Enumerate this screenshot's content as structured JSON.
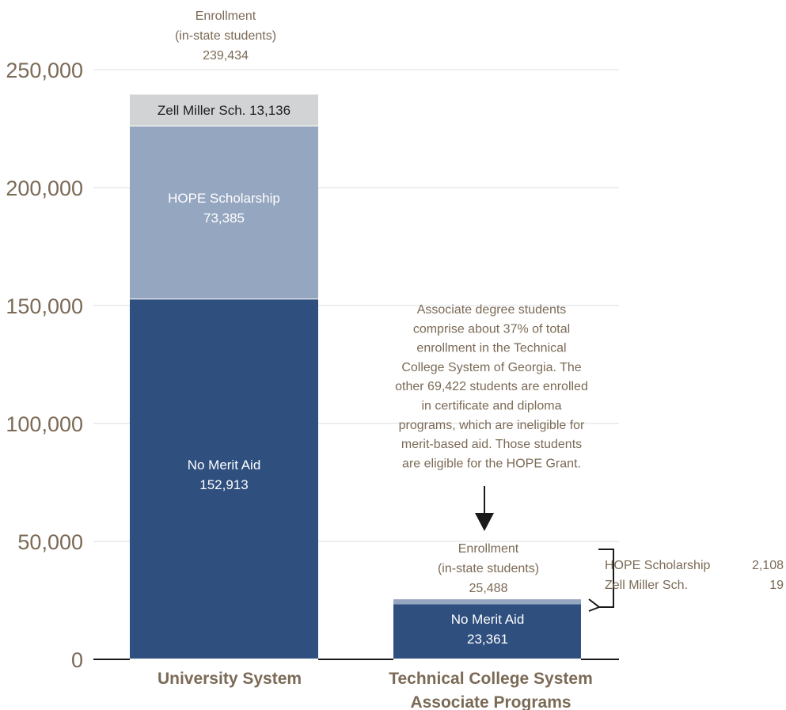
{
  "chart_data": {
    "type": "bar",
    "stacked": true,
    "ylim": [
      0,
      250000
    ],
    "yticks": [
      0,
      50000,
      100000,
      150000,
      200000,
      250000
    ],
    "ytick_labels": [
      "0",
      "50,000",
      "100,000",
      "150,000",
      "200,000",
      "250,000"
    ],
    "grid": true,
    "categories": [
      "University System",
      "Technical College System Associate Programs"
    ],
    "category_lines": [
      [
        "University System"
      ],
      [
        "Technical College System",
        "Associate Programs"
      ]
    ],
    "series": [
      {
        "name": "No Merit Aid",
        "values": [
          152913,
          23361
        ],
        "color": "#2f4f7f"
      },
      {
        "name": "HOPE Scholarship",
        "values": [
          73385,
          2108
        ],
        "color": "#95a6c0"
      },
      {
        "name": "Zell Miller Sch.",
        "values": [
          13136,
          19
        ],
        "color": "#d2d3d5"
      }
    ],
    "segment_labels": {
      "university": {
        "no_merit": [
          "No Merit Aid",
          "152,913"
        ],
        "hope": [
          "HOPE Scholarship",
          "73,385"
        ],
        "zell": "Zell Miller Sch.  13,136"
      },
      "technical": {
        "no_merit": [
          "No Merit Aid",
          "23,361"
        ]
      }
    },
    "totals": [
      {
        "lines": [
          "Enrollment",
          "(in-state students)",
          "239,434"
        ],
        "value": 239434
      },
      {
        "lines": [
          "Enrollment",
          "(in-state students)",
          "25,488"
        ],
        "value": 25488
      }
    ],
    "side_legend": [
      {
        "label": "HOPE Scholarship",
        "value": "2,108"
      },
      {
        "label": "Zell Miller Sch.",
        "value": "19"
      }
    ],
    "annotation": [
      "Associate degree students",
      "comprise about 37% of total",
      "enrollment in the Technical",
      "College System of Georgia. The",
      "other 69,422 students are enrolled",
      "in certificate and diploma",
      "programs, which are ineligible for",
      "merit-based aid. Those students",
      "are eligible for the HOPE Grant."
    ],
    "colors": {
      "no_merit": "#2f4f7f",
      "hope": "#95a6c0",
      "zell": "#d2d3d5",
      "text": "#7b6a56",
      "grid": "#d9dde2"
    }
  }
}
